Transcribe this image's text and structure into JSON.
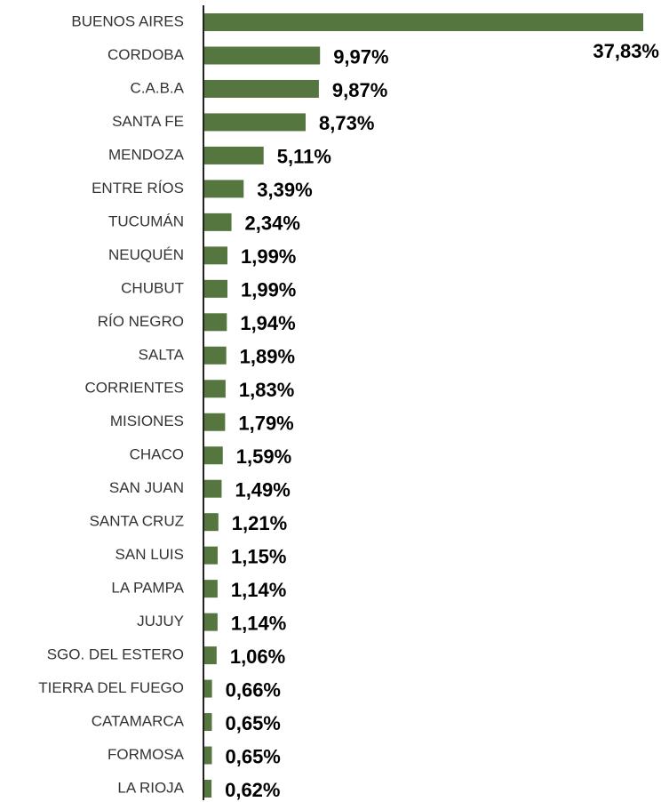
{
  "chart_data": {
    "type": "bar",
    "orientation": "horizontal",
    "color": "#56763f",
    "categories": [
      "BUENOS AIRES",
      "CORDOBA",
      "C.A.B.A",
      "SANTA FE",
      "MENDOZA",
      "ENTRE RÍOS",
      "TUCUMÁN",
      "NEUQUÉN",
      "CHUBUT",
      "RÍO NEGRO",
      "SALTA",
      "CORRIENTES",
      "MISIONES",
      "CHACO",
      "SAN JUAN",
      "SANTA CRUZ",
      "SAN LUIS",
      "LA PAMPA",
      "JUJUY",
      "SGO. DEL ESTERO",
      "TIERRA DEL FUEGO",
      "CATAMARCA",
      "FORMOSA",
      "LA RIOJA"
    ],
    "values": [
      37.83,
      9.97,
      9.87,
      8.73,
      5.11,
      3.39,
      2.34,
      1.99,
      1.99,
      1.94,
      1.89,
      1.83,
      1.79,
      1.59,
      1.49,
      1.21,
      1.15,
      1.14,
      1.14,
      1.06,
      0.66,
      0.65,
      0.65,
      0.62
    ],
    "value_labels": [
      "37,83%",
      "9,97%",
      "9,87%",
      "8,73%",
      "5,11%",
      "3,39%",
      "2,34%",
      "1,99%",
      "1,99%",
      "1,94%",
      "1,89%",
      "1,83%",
      "1,79%",
      "1,59%",
      "1,49%",
      "1,21%",
      "1,15%",
      "1,14%",
      "1,14%",
      "1,06%",
      "0,66%",
      "0,65%",
      "0,65%",
      "0,62%"
    ]
  }
}
